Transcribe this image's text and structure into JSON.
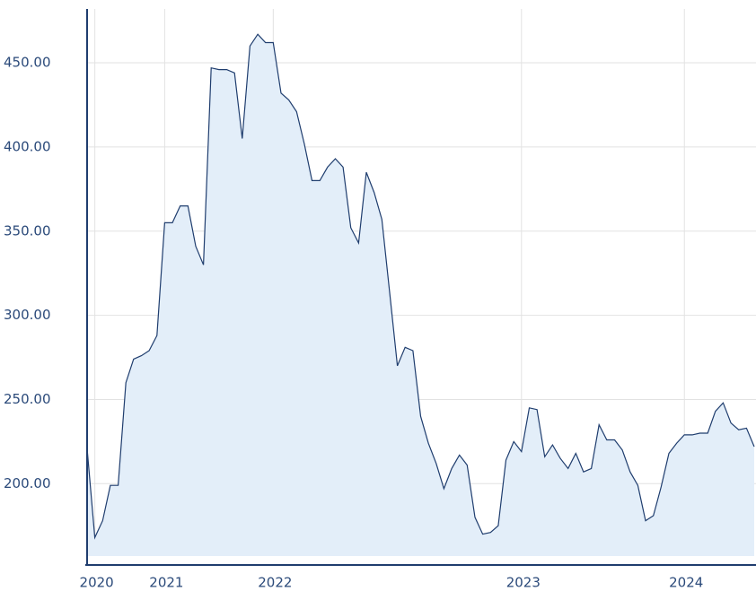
{
  "chart_data": {
    "type": "area",
    "categories": [
      null,
      "2020",
      null,
      null,
      null,
      null,
      null,
      null,
      null,
      null,
      "2021",
      null,
      null,
      null,
      null,
      null,
      null,
      null,
      null,
      null,
      null,
      null,
      null,
      null,
      "2022",
      null,
      null,
      null,
      null,
      null,
      null,
      null,
      null,
      null,
      null,
      null,
      null,
      null,
      null,
      null,
      null,
      null,
      null,
      null,
      null,
      null,
      null,
      null,
      null,
      null,
      null,
      null,
      null,
      null,
      null,
      null,
      "2023",
      null,
      null,
      null,
      null,
      null,
      null,
      null,
      null,
      null,
      null,
      null,
      null,
      null,
      null,
      null,
      null,
      null,
      null,
      null,
      null,
      "2024",
      null,
      null,
      null,
      null,
      null,
      null,
      null,
      null,
      null
    ],
    "values": [
      221,
      168,
      178,
      199,
      199,
      260,
      274,
      276,
      279,
      288,
      355,
      355,
      365,
      365,
      341,
      330,
      447,
      446,
      446,
      444,
      405,
      460,
      467,
      462,
      462,
      432,
      428,
      421,
      402,
      380,
      380,
      388,
      393,
      388,
      352,
      343,
      385,
      373,
      357,
      314,
      270,
      281,
      279,
      240,
      224,
      212,
      197,
      209,
      217,
      211,
      180,
      170,
      171,
      175,
      214,
      225,
      219,
      245,
      244,
      216,
      223,
      215,
      209,
      218,
      207,
      209,
      235,
      226,
      226,
      220,
      207,
      199,
      178,
      181,
      198,
      218,
      224,
      229,
      229,
      230,
      230,
      243,
      248,
      236,
      232,
      233,
      222
    ],
    "color": "#1f3d6e",
    "fill": "#e3eef9",
    "ylim": [
      157,
      482
    ],
    "yticks": [
      {
        "value": 200,
        "label": "200.00"
      },
      {
        "value": 250,
        "label": "250.00"
      },
      {
        "value": 300,
        "label": "300.00"
      },
      {
        "value": 350,
        "label": "350.00"
      },
      {
        "value": 400,
        "label": "400.00"
      },
      {
        "value": 450,
        "label": "450.00"
      }
    ],
    "grid": true
  }
}
